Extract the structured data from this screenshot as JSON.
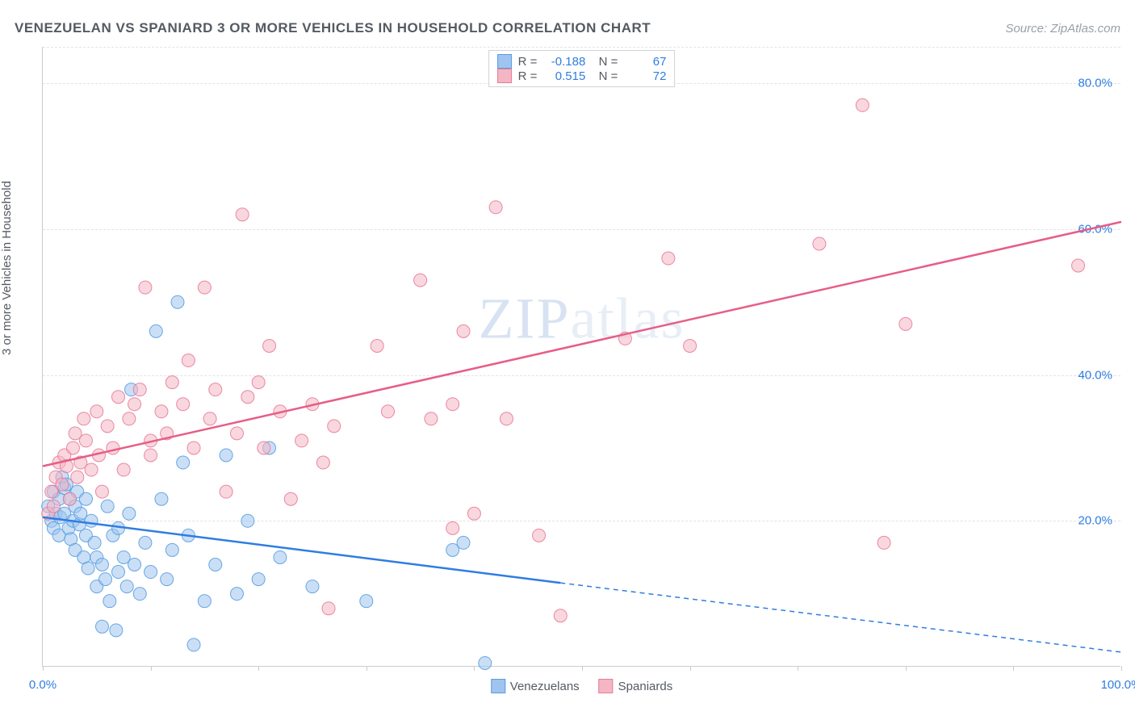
{
  "title": "VENEZUELAN VS SPANIARD 3 OR MORE VEHICLES IN HOUSEHOLD CORRELATION CHART",
  "source": "Source: ZipAtlas.com",
  "ylabel": "3 or more Vehicles in Household",
  "watermark": {
    "a": "ZIP",
    "b": "atlas"
  },
  "chart": {
    "type": "scatter",
    "xlim": [
      0,
      100
    ],
    "ylim": [
      0,
      85
    ],
    "x_ticks": [
      0,
      10,
      20,
      30,
      40,
      50,
      60,
      70,
      80,
      90,
      100
    ],
    "x_tick_labels_shown": {
      "0": "0.0%",
      "100": "100.0%"
    },
    "y_gridlines": [
      20,
      40,
      60,
      80,
      85
    ],
    "y_tick_labels": {
      "20": "20.0%",
      "40": "40.0%",
      "60": "60.0%",
      "80": "80.0%"
    },
    "x_label_color": "#2f7de1",
    "y_label_color": "#2f7de1",
    "grid_color": "#e0e3e8",
    "axis_color": "#c8ccd2",
    "background": "#ffffff",
    "marker_radius": 8,
    "marker_opacity": 0.55,
    "marker_stroke_opacity": 0.9,
    "line_width": 2.5,
    "series": [
      {
        "name": "Venezuelans",
        "color_fill": "#9fc4ef",
        "color_stroke": "#5a9ee0",
        "line_color": "#2f7de1",
        "R": "-0.188",
        "N": "67",
        "trend": {
          "x1": 0,
          "y1": 20.5,
          "x2_solid": 48,
          "y2_solid": 11.5,
          "x2_dash": 100,
          "y2_dash": 2
        },
        "points": [
          [
            0.5,
            22
          ],
          [
            0.8,
            20
          ],
          [
            1,
            24
          ],
          [
            1,
            19
          ],
          [
            1.2,
            21
          ],
          [
            1.5,
            23
          ],
          [
            1.5,
            18
          ],
          [
            1.6,
            20.5
          ],
          [
            1.8,
            26
          ],
          [
            2,
            24.5
          ],
          [
            2,
            21
          ],
          [
            2.2,
            25
          ],
          [
            2.4,
            19
          ],
          [
            2.5,
            23
          ],
          [
            2.6,
            17.5
          ],
          [
            2.8,
            20
          ],
          [
            3,
            22
          ],
          [
            3,
            16
          ],
          [
            3.2,
            24
          ],
          [
            3.4,
            19.5
          ],
          [
            3.5,
            21
          ],
          [
            3.8,
            15
          ],
          [
            4,
            18
          ],
          [
            4,
            23
          ],
          [
            4.2,
            13.5
          ],
          [
            4.5,
            20
          ],
          [
            4.8,
            17
          ],
          [
            5,
            15
          ],
          [
            5,
            11
          ],
          [
            5.5,
            14
          ],
          [
            5.5,
            5.5
          ],
          [
            5.8,
            12
          ],
          [
            6,
            22
          ],
          [
            6.2,
            9
          ],
          [
            6.5,
            18
          ],
          [
            6.8,
            5
          ],
          [
            7,
            19
          ],
          [
            7,
            13
          ],
          [
            7.5,
            15
          ],
          [
            7.8,
            11
          ],
          [
            8,
            21
          ],
          [
            8.2,
            38
          ],
          [
            8.5,
            14
          ],
          [
            9,
            10
          ],
          [
            9.5,
            17
          ],
          [
            10,
            13
          ],
          [
            10.5,
            46
          ],
          [
            11,
            23
          ],
          [
            11.5,
            12
          ],
          [
            12,
            16
          ],
          [
            12.5,
            50
          ],
          [
            13,
            28
          ],
          [
            13.5,
            18
          ],
          [
            14,
            3
          ],
          [
            15,
            9
          ],
          [
            16,
            14
          ],
          [
            17,
            29
          ],
          [
            18,
            10
          ],
          [
            19,
            20
          ],
          [
            20,
            12
          ],
          [
            21,
            30
          ],
          [
            22,
            15
          ],
          [
            25,
            11
          ],
          [
            30,
            9
          ],
          [
            38,
            16
          ],
          [
            39,
            17
          ],
          [
            41,
            0.5
          ]
        ]
      },
      {
        "name": "Spaniards",
        "color_fill": "#f4b6c4",
        "color_stroke": "#e97b99",
        "line_color": "#e75d86",
        "R": "0.515",
        "N": "72",
        "trend": {
          "x1": 0,
          "y1": 27.5,
          "x2_solid": 100,
          "y2_solid": 61,
          "x2_dash": 100,
          "y2_dash": 61
        },
        "points": [
          [
            0.5,
            21
          ],
          [
            0.8,
            24
          ],
          [
            1,
            22
          ],
          [
            1.2,
            26
          ],
          [
            1.5,
            28
          ],
          [
            1.8,
            25
          ],
          [
            2,
            29
          ],
          [
            2.2,
            27.5
          ],
          [
            2.5,
            23
          ],
          [
            2.8,
            30
          ],
          [
            3,
            32
          ],
          [
            3.2,
            26
          ],
          [
            3.5,
            28
          ],
          [
            3.8,
            34
          ],
          [
            4,
            31
          ],
          [
            4.5,
            27
          ],
          [
            5,
            35
          ],
          [
            5.2,
            29
          ],
          [
            5.5,
            24
          ],
          [
            6,
            33
          ],
          [
            6.5,
            30
          ],
          [
            7,
            37
          ],
          [
            7.5,
            27
          ],
          [
            8,
            34
          ],
          [
            8.5,
            36
          ],
          [
            9,
            38
          ],
          [
            9.5,
            52
          ],
          [
            10,
            31
          ],
          [
            10,
            29
          ],
          [
            11,
            35
          ],
          [
            11.5,
            32
          ],
          [
            12,
            39
          ],
          [
            13,
            36
          ],
          [
            13.5,
            42
          ],
          [
            14,
            30
          ],
          [
            15,
            52
          ],
          [
            15.5,
            34
          ],
          [
            16,
            38
          ],
          [
            17,
            24
          ],
          [
            18,
            32
          ],
          [
            18.5,
            62
          ],
          [
            19,
            37
          ],
          [
            20,
            39
          ],
          [
            20.5,
            30
          ],
          [
            21,
            44
          ],
          [
            22,
            35
          ],
          [
            23,
            23
          ],
          [
            24,
            31
          ],
          [
            25,
            36
          ],
          [
            26,
            28
          ],
          [
            26.5,
            8
          ],
          [
            27,
            33
          ],
          [
            31,
            44
          ],
          [
            32,
            35
          ],
          [
            35,
            53
          ],
          [
            36,
            34
          ],
          [
            38,
            19
          ],
          [
            39,
            46
          ],
          [
            40,
            21
          ],
          [
            42,
            63
          ],
          [
            43,
            34
          ],
          [
            46,
            18
          ],
          [
            48,
            7
          ],
          [
            54,
            45
          ],
          [
            58,
            56
          ],
          [
            60,
            44
          ],
          [
            72,
            58
          ],
          [
            76,
            77
          ],
          [
            78,
            17
          ],
          [
            80,
            47
          ],
          [
            96,
            55
          ],
          [
            38,
            36
          ]
        ]
      }
    ]
  },
  "legend_bottom": [
    {
      "label": "Venezuelans",
      "fill": "#9fc4ef",
      "stroke": "#5a9ee0"
    },
    {
      "label": "Spaniards",
      "fill": "#f4b6c4",
      "stroke": "#e97b99"
    }
  ]
}
